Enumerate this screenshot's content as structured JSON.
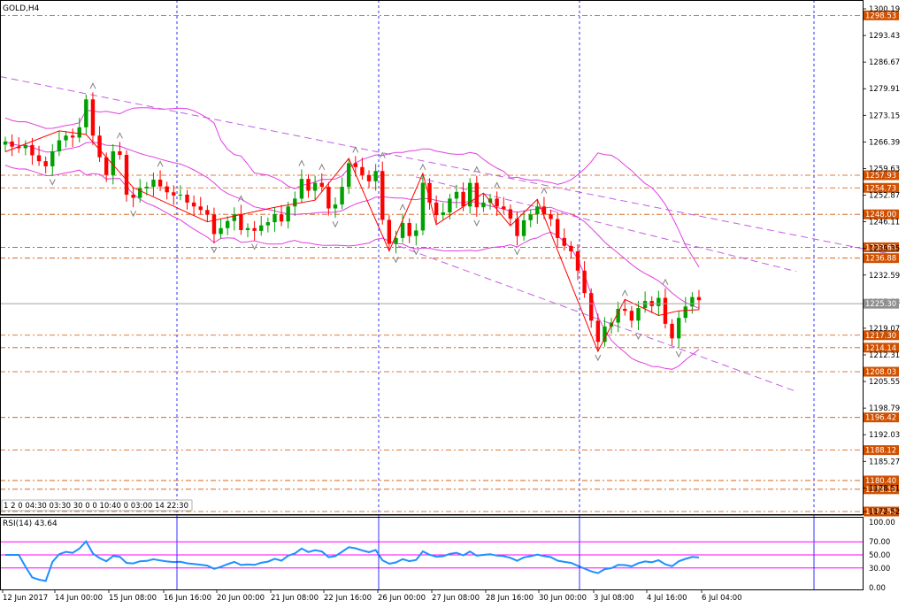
{
  "window": {
    "title": "GOLD,H4"
  },
  "chart_data": {
    "type": "candlestick",
    "symbol": "GOLD",
    "timeframe": "H4",
    "colors": {
      "up": "#00a000",
      "down": "#ff0000",
      "bollinger": "#e040e0",
      "trendline": "#c060e0",
      "level": "#d05000",
      "vgrid": "#0000ff",
      "current_line": "#a0a0a0",
      "rsi": "#1e90ff",
      "rsi_levels": "#ff00ff"
    },
    "price_axis": {
      "ticks": [
        "1300.19",
        "1293.43",
        "1286.67",
        "1279.91",
        "1273.15",
        "1266.39",
        "1259.63",
        "1252.87",
        "1246.11",
        "1239.35",
        "1232.59",
        "1225.83",
        "1219.07",
        "1212.31",
        "1205.55",
        "1198.79",
        "1192.03",
        "1185.27",
        "1178.51",
        "1172.52"
      ],
      "ylim": [
        1172.52,
        1300.19
      ]
    },
    "current_price": "1225.30",
    "levels": [
      "1298.53",
      "1257.93",
      "1254.73",
      "1248.00",
      "1239.63",
      "1236.88",
      "1217.30",
      "1214.14",
      "1208.03",
      "1196.42",
      "1188.12",
      "1180.40",
      "1178.18",
      "1172.52"
    ],
    "x_labels": [
      "12 Jun 2017",
      "14 Jun 00:00",
      "15 Jun 08:00",
      "16 Jun 16:00",
      "20 Jun 00:00",
      "21 Jun 08:00",
      "22 Jun 16:00",
      "26 Jun 00:00",
      "27 Jun 08:00",
      "28 Jun 16:00",
      "30 Jun 00:00",
      "3 Jul 08:00",
      "4 Jul 16:00",
      "6 Jul 04:00"
    ],
    "closes": [
      1266.5,
      1265.2,
      1264.8,
      1265.6,
      1263.0,
      1261.5,
      1260.2,
      1264.0,
      1266.8,
      1268.0,
      1267.5,
      1270.1,
      1277.2,
      1268.0,
      1262.5,
      1258.0,
      1264.0,
      1263.1,
      1253.0,
      1252.2,
      1254.6,
      1255.0,
      1256.8,
      1255.1,
      1253.6,
      1252.8,
      1253.0,
      1251.0,
      1250.0,
      1249.1,
      1247.9,
      1243.0,
      1244.5,
      1246.3,
      1248.0,
      1244.0,
      1244.5,
      1243.8,
      1245.2,
      1246.0,
      1248.0,
      1246.2,
      1250.0,
      1252.0,
      1257.0,
      1254.0,
      1256.0,
      1255.0,
      1249.5,
      1250.5,
      1255.0,
      1261.0,
      1260.0,
      1258.0,
      1256.4,
      1259.0,
      1246.6,
      1240.5,
      1242.0,
      1245.8,
      1242.5,
      1243.9,
      1256.0,
      1251.0,
      1247.8,
      1248.5,
      1252.0,
      1253.7,
      1250.0,
      1256.0,
      1249.8,
      1251.0,
      1252.0,
      1250.0,
      1249.3,
      1246.9,
      1242.5,
      1246.5,
      1248.0,
      1250.0,
      1248.0,
      1246.8,
      1242.0,
      1240.0,
      1238.6,
      1233.7,
      1228.0,
      1221.0,
      1215.6,
      1219.5,
      1220.5,
      1224.0,
      1223.5,
      1221.0,
      1224.2,
      1226.0,
      1224.7,
      1226.8,
      1220.2,
      1216.5,
      1221.7,
      1224.6,
      1227.0,
      1226.2
    ],
    "rsi": {
      "label": "RSI(14) 43.64",
      "ticks": [
        "100.00",
        "70.00",
        "50.00",
        "30.00",
        "0.00"
      ],
      "levels": [
        70,
        50,
        30
      ],
      "ylim": [
        0,
        100
      ]
    }
  },
  "toolbar": {
    "text": "1 2 0 04:30 03:30 30 0 0 10:40 0 03:00 14 22:30"
  }
}
